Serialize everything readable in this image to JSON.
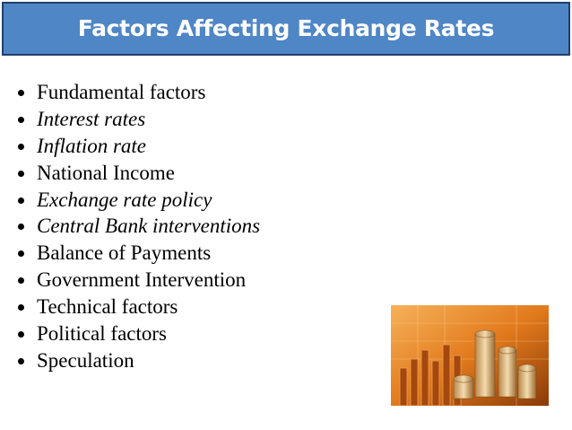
{
  "header": {
    "title": "Factors Affecting Exchange Rates"
  },
  "bullets": [
    {
      "text": "Fundamental factors",
      "italic": false
    },
    {
      "text": "Interest rates",
      "italic": true
    },
    {
      "text": "Inflation rate",
      "italic": true
    },
    {
      "text": "National Income",
      "italic": false
    },
    {
      "text": "Exchange rate policy",
      "italic": true
    },
    {
      "text": "Central Bank interventions",
      "italic": true
    },
    {
      "text": "Balance of Payments",
      "italic": false
    },
    {
      "text": "Government Intervention",
      "italic": false
    },
    {
      "text": "Technical factors",
      "italic": false
    },
    {
      "text": "Political factors",
      "italic": false
    },
    {
      "text": "Speculation",
      "italic": false
    }
  ]
}
